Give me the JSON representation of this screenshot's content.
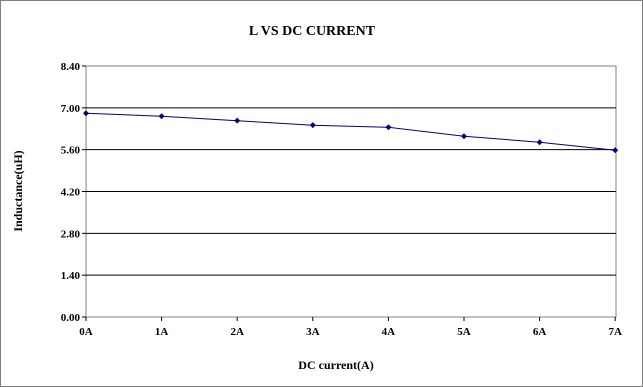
{
  "chart_data": {
    "type": "line",
    "title": "L VS DC CURRENT",
    "xlabel": "DC current(A)",
    "ylabel": "Inductance(uH)",
    "categories": [
      "0A",
      "1A",
      "2A",
      "3A",
      "4A",
      "5A",
      "6A",
      "7A"
    ],
    "y_ticks": [
      "0.00",
      "1.40",
      "2.80",
      "4.20",
      "5.60",
      "7.00",
      "8.40"
    ],
    "ylim": [
      0,
      8.4
    ],
    "grid": true,
    "legend": "none",
    "series": [
      {
        "values": [
          6.82,
          6.72,
          6.57,
          6.42,
          6.35,
          6.05,
          5.85,
          5.58
        ]
      }
    ],
    "colors": {
      "line": "#00007f",
      "marker": "#00007f",
      "grid": "#000000",
      "frame": "#808080"
    }
  }
}
